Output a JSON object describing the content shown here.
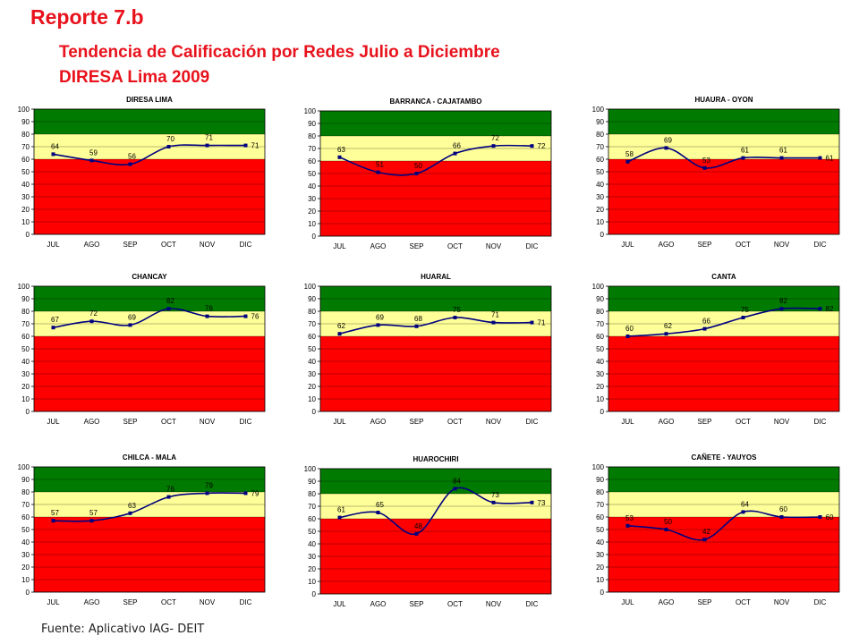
{
  "header": {
    "title": "Reporte 7.b",
    "subtitle_line1": "Tendencia de Calificación por Redes Julio a Diciembre",
    "subtitle_line2": "DIRESA Lima 2009"
  },
  "footer": {
    "source": "Fuente: Aplicativo IAG- DEIT"
  },
  "colors": {
    "red_zone": "#ff0000",
    "yellow_zone": "#ffff99",
    "green_zone": "#007a00",
    "line": "#000080",
    "title": "#e8121c"
  },
  "chart_data": [
    {
      "type": "line",
      "title": "DIRESA LIMA",
      "categories": [
        "JUL",
        "AGO",
        "SEP",
        "OCT",
        "NOV",
        "DIC"
      ],
      "values": [
        64,
        59,
        56,
        70,
        71,
        71
      ],
      "ylim": [
        0,
        100
      ],
      "yticks": [
        0,
        10,
        20,
        30,
        40,
        50,
        60,
        70,
        80,
        90,
        100
      ],
      "bands": [
        [
          0,
          60
        ],
        [
          60,
          80
        ],
        [
          80,
          100
        ]
      ]
    },
    {
      "type": "line",
      "title": "BARRANCA - CAJATAMBO",
      "categories": [
        "JUL",
        "AGO",
        "SEP",
        "OCT",
        "NOV",
        "DIC"
      ],
      "values": [
        63,
        51,
        50,
        66,
        72,
        72
      ],
      "ylim": [
        0,
        100
      ],
      "yticks": [
        0,
        10,
        20,
        30,
        40,
        50,
        60,
        70,
        80,
        90,
        100
      ],
      "bands": [
        [
          0,
          60
        ],
        [
          60,
          80
        ],
        [
          80,
          100
        ]
      ]
    },
    {
      "type": "line",
      "title": "HUAURA - OYON",
      "categories": [
        "JUL",
        "AGO",
        "SEP",
        "OCT",
        "NOV",
        "DIC"
      ],
      "values": [
        58,
        69,
        53,
        61,
        61,
        61
      ],
      "ylim": [
        0,
        100
      ],
      "yticks": [
        0,
        10,
        20,
        30,
        40,
        50,
        60,
        70,
        80,
        90,
        100
      ],
      "bands": [
        [
          0,
          60
        ],
        [
          60,
          80
        ],
        [
          80,
          100
        ]
      ]
    },
    {
      "type": "line",
      "title": "CHANCAY",
      "categories": [
        "JUL",
        "AGO",
        "SEP",
        "OCT",
        "NOV",
        "DIC"
      ],
      "values": [
        67,
        72,
        69,
        82,
        76,
        76
      ],
      "ylim": [
        0,
        100
      ],
      "yticks": [
        0,
        10,
        20,
        30,
        40,
        50,
        60,
        70,
        80,
        90,
        100
      ],
      "bands": [
        [
          0,
          60
        ],
        [
          60,
          80
        ],
        [
          80,
          100
        ]
      ]
    },
    {
      "type": "line",
      "title": "HUARAL",
      "categories": [
        "JUL",
        "AGO",
        "SEP",
        "OCT",
        "NOV",
        "DIC"
      ],
      "values": [
        62,
        69,
        68,
        75,
        71,
        71
      ],
      "ylim": [
        0,
        100
      ],
      "yticks": [
        0,
        10,
        20,
        30,
        40,
        50,
        60,
        70,
        80,
        90,
        100
      ],
      "bands": [
        [
          0,
          60
        ],
        [
          60,
          80
        ],
        [
          80,
          100
        ]
      ]
    },
    {
      "type": "line",
      "title": "CANTA",
      "categories": [
        "JUL",
        "AGO",
        "SEP",
        "OCT",
        "NOV",
        "DIC"
      ],
      "values": [
        60,
        62,
        66,
        75,
        82,
        82
      ],
      "ylim": [
        0,
        100
      ],
      "yticks": [
        0,
        10,
        20,
        30,
        40,
        50,
        60,
        70,
        80,
        90,
        100
      ],
      "bands": [
        [
          0,
          60
        ],
        [
          60,
          80
        ],
        [
          80,
          100
        ]
      ]
    },
    {
      "type": "line",
      "title": "CHILCA - MALA",
      "categories": [
        "JUL",
        "AGO",
        "SEP",
        "OCT",
        "NOV",
        "DIC"
      ],
      "values": [
        57,
        57,
        63,
        76,
        79,
        79
      ],
      "ylim": [
        0,
        100
      ],
      "yticks": [
        0,
        10,
        20,
        30,
        40,
        50,
        60,
        70,
        80,
        90,
        100
      ],
      "bands": [
        [
          0,
          60
        ],
        [
          60,
          80
        ],
        [
          80,
          100
        ]
      ]
    },
    {
      "type": "line",
      "title": "HUAROCHIRI",
      "categories": [
        "JUL",
        "AGO",
        "SEP",
        "OCT",
        "NOV",
        "DIC"
      ],
      "values": [
        61,
        65,
        48,
        84,
        73,
        73
      ],
      "ylim": [
        0,
        100
      ],
      "yticks": [
        0,
        10,
        20,
        30,
        40,
        50,
        60,
        70,
        80,
        90,
        100
      ],
      "bands": [
        [
          0,
          60
        ],
        [
          60,
          80
        ],
        [
          80,
          100
        ]
      ]
    },
    {
      "type": "line",
      "title": "CAÑETE - YAUYOS",
      "categories": [
        "JUL",
        "AGO",
        "SEP",
        "OCT",
        "NOV",
        "DIC"
      ],
      "values": [
        53,
        50,
        42,
        64,
        60,
        60
      ],
      "ylim": [
        0,
        100
      ],
      "yticks": [
        0,
        10,
        20,
        30,
        40,
        50,
        60,
        70,
        80,
        90,
        100
      ],
      "bands": [
        [
          0,
          60
        ],
        [
          60,
          80
        ],
        [
          80,
          100
        ]
      ]
    }
  ]
}
